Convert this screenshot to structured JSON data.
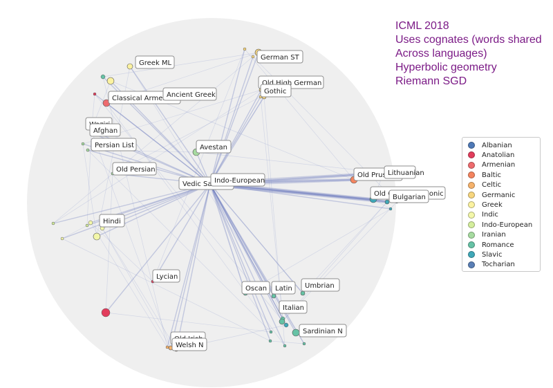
{
  "slide": {
    "notes": [
      "ICML 2018",
      "Uses cognates (words shared",
      "Across languages)",
      "Hyperbolic geometry",
      "Riemann SGD"
    ]
  },
  "legend": [
    {
      "name": "Albanian",
      "color": "#4e79b7"
    },
    {
      "name": "Anatolian",
      "color": "#e23d5c"
    },
    {
      "name": "Armenian",
      "color": "#ee6b6e"
    },
    {
      "name": "Baltic",
      "color": "#f4845f"
    },
    {
      "name": "Celtic",
      "color": "#f6b26b"
    },
    {
      "name": "Germanic",
      "color": "#f7d67e"
    },
    {
      "name": "Greek",
      "color": "#fbf2a0"
    },
    {
      "name": "Indic",
      "color": "#f3f7a9"
    },
    {
      "name": "Indo-European",
      "color": "#d4ee9c"
    },
    {
      "name": "Iranian",
      "color": "#a6dba0"
    },
    {
      "name": "Romance",
      "color": "#66c2a5"
    },
    {
      "name": "Slavic",
      "color": "#3fa8b8"
    },
    {
      "name": "Tocharian",
      "color": "#5a7fb6"
    }
  ],
  "nodes": [
    {
      "label": "Greek ML",
      "group": "Greek"
    },
    {
      "label": "Classical Armenian",
      "group": "Armenian"
    },
    {
      "label": "Ancient Greek",
      "group": "Greek"
    },
    {
      "label": "Waziri",
      "group": "Iranian"
    },
    {
      "label": "Afghan",
      "group": "Iranian"
    },
    {
      "label": "Persian List",
      "group": "Iranian"
    },
    {
      "label": "Old Persian",
      "group": "Iranian"
    },
    {
      "label": "Avestan",
      "group": "Iranian"
    },
    {
      "label": "Vedic Sanskrit",
      "group": "Indic"
    },
    {
      "label": "Indo-European",
      "group": "Indo-European"
    },
    {
      "label": "German ST",
      "group": "Germanic"
    },
    {
      "label": "Old High German",
      "group": "Germanic"
    },
    {
      "label": "Gothic",
      "group": "Germanic"
    },
    {
      "label": "Old Prussian",
      "group": "Baltic"
    },
    {
      "label": "Lithuanian",
      "group": "Baltic"
    },
    {
      "label": "Old Church Slavonic",
      "group": "Slavic"
    },
    {
      "label": "Bulgarian",
      "group": "Slavic"
    },
    {
      "label": "Hindi",
      "group": "Indic"
    },
    {
      "label": "Lycian",
      "group": "Anatolian"
    },
    {
      "label": "Oscan",
      "group": "Romance"
    },
    {
      "label": "Latin",
      "group": "Romance"
    },
    {
      "label": "Umbrian",
      "group": "Romance"
    },
    {
      "label": "Italian",
      "group": "Romance"
    },
    {
      "label": "Sardinian N",
      "group": "Romance"
    },
    {
      "label": "Old Irish",
      "group": "Celtic"
    },
    {
      "label": "Welsh N",
      "group": "Celtic"
    }
  ]
}
